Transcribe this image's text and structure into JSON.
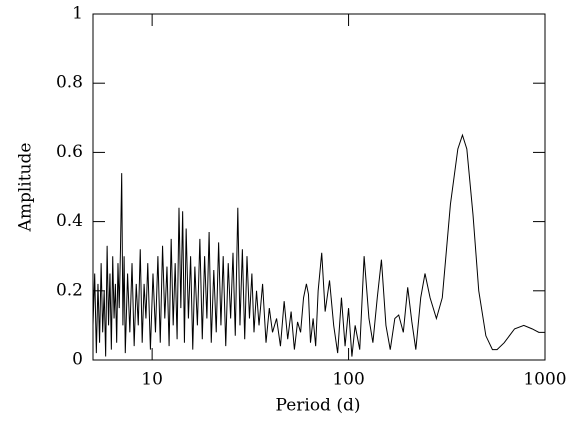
{
  "chart_data": {
    "type": "line",
    "x_label": "Period (d)",
    "y_label": "Amplitude",
    "xscale": "log",
    "xlim": [
      5,
      1000
    ],
    "xticks": [
      10,
      100,
      1000
    ],
    "ylim": [
      0,
      1
    ],
    "yticks": [
      0,
      0.2,
      0.4,
      0.6,
      0.8,
      1
    ],
    "series": [
      {
        "color": "#000000",
        "x": [
          5.0,
          5.1,
          5.2,
          5.3,
          5.4,
          5.5,
          5.6,
          5.7,
          5.8,
          5.9,
          6.0,
          6.1,
          6.2,
          6.3,
          6.4,
          6.5,
          6.6,
          6.7,
          6.8,
          6.9,
          7.0,
          7.1,
          7.2,
          7.3,
          7.5,
          7.7,
          7.9,
          8.1,
          8.3,
          8.5,
          8.7,
          8.9,
          9.1,
          9.3,
          9.5,
          9.8,
          10.1,
          10.4,
          10.7,
          11.0,
          11.3,
          11.6,
          11.9,
          12.2,
          12.5,
          12.8,
          13.1,
          13.4,
          13.7,
          14.0,
          14.3,
          14.6,
          14.9,
          15.3,
          15.7,
          16.1,
          16.5,
          17.0,
          17.5,
          18.0,
          18.5,
          19.0,
          19.5,
          20.0,
          20.6,
          21.2,
          21.8,
          22.4,
          23.0,
          23.7,
          24.4,
          25.1,
          25.8,
          26.5,
          27.3,
          28.0,
          28.8,
          29.6,
          30.4,
          31.3,
          32.2,
          33,
          34,
          35,
          36.5,
          38,
          39.5,
          41,
          43,
          45,
          47,
          49,
          51,
          53,
          55,
          57,
          59,
          61,
          62.5,
          64,
          66,
          68,
          70,
          73,
          76,
          80,
          84,
          88,
          92,
          96,
          100,
          104,
          108,
          114,
          120,
          127,
          133,
          140,
          147,
          155,
          163,
          172,
          180,
          190,
          200,
          210,
          220,
          233,
          245,
          260,
          280,
          300,
          330,
          360,
          380,
          400,
          430,
          460,
          500,
          540,
          570,
          620,
          700,
          780,
          860,
          930,
          1000
        ],
        "values": [
          0.1,
          0.25,
          0.02,
          0.22,
          0.05,
          0.28,
          0.08,
          0.2,
          0.01,
          0.33,
          0.1,
          0.25,
          0.03,
          0.3,
          0.12,
          0.22,
          0.05,
          0.28,
          0.15,
          0.32,
          0.54,
          0.1,
          0.3,
          0.02,
          0.25,
          0.08,
          0.28,
          0.04,
          0.22,
          0.1,
          0.32,
          0.05,
          0.22,
          0.12,
          0.28,
          0.03,
          0.25,
          0.08,
          0.3,
          0.05,
          0.33,
          0.12,
          0.27,
          0.04,
          0.35,
          0.1,
          0.28,
          0.06,
          0.44,
          0.15,
          0.43,
          0.05,
          0.38,
          0.12,
          0.3,
          0.03,
          0.27,
          0.1,
          0.35,
          0.06,
          0.3,
          0.12,
          0.37,
          0.05,
          0.26,
          0.08,
          0.34,
          0.1,
          0.3,
          0.04,
          0.28,
          0.12,
          0.31,
          0.07,
          0.44,
          0.1,
          0.32,
          0.06,
          0.3,
          0.12,
          0.25,
          0.08,
          0.2,
          0.1,
          0.22,
          0.05,
          0.15,
          0.08,
          0.12,
          0.04,
          0.17,
          0.06,
          0.14,
          0.03,
          0.11,
          0.08,
          0.18,
          0.22,
          0.19,
          0.05,
          0.12,
          0.04,
          0.2,
          0.31,
          0.14,
          0.23,
          0.1,
          0.02,
          0.18,
          0.04,
          0.15,
          0.01,
          0.1,
          0.03,
          0.3,
          0.12,
          0.05,
          0.18,
          0.29,
          0.1,
          0.03,
          0.12,
          0.13,
          0.08,
          0.21,
          0.11,
          0.03,
          0.18,
          0.25,
          0.18,
          0.12,
          0.18,
          0.45,
          0.61,
          0.65,
          0.61,
          0.42,
          0.2,
          0.07,
          0.03,
          0.03,
          0.05,
          0.09,
          0.1,
          0.09,
          0.08,
          0.08
        ]
      }
    ]
  }
}
